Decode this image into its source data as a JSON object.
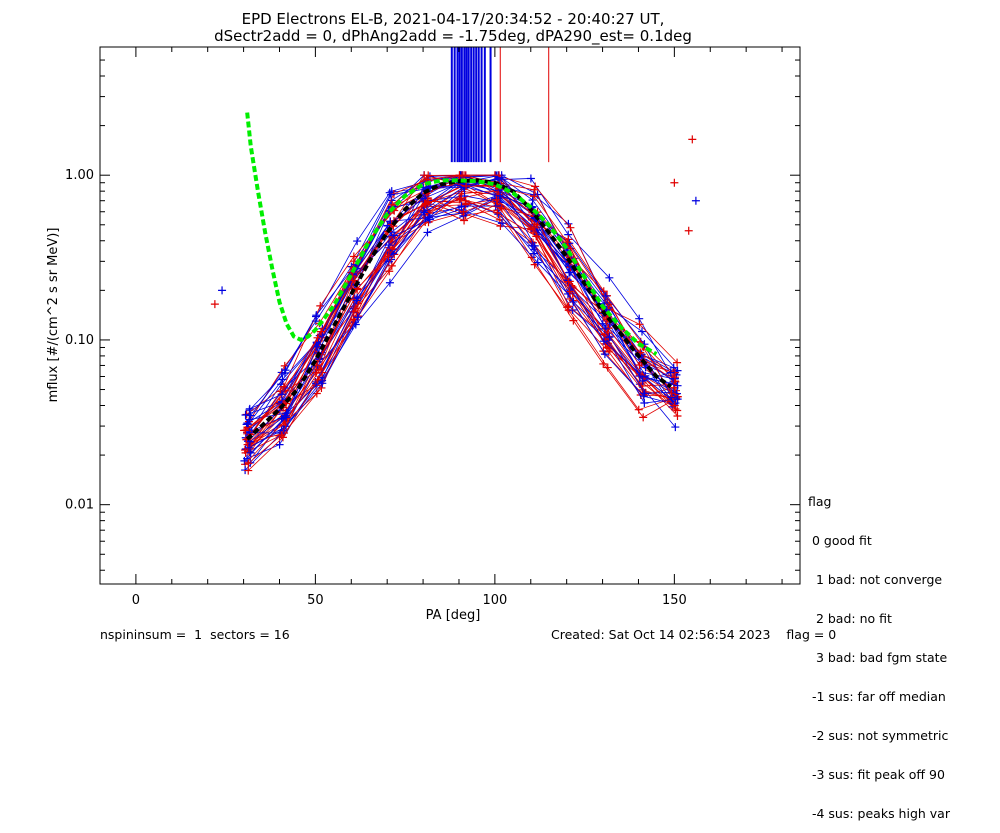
{
  "chart_data": {
    "type": "scatter",
    "title": [
      "EPD Electrons EL-B, 2021-04-17/20:34:52 - 20:40:27 UT,",
      "dSectr2add = 0, dPhAng2add = -1.75deg, dPA290_est=   0.1deg"
    ],
    "xlabel": "PA [deg]",
    "ylabel": "mflux [#/(cm^2 s sr MeV)]",
    "xlim": [
      -10,
      185
    ],
    "ylim": [
      0.0033,
      6.0
    ],
    "yscale": "log",
    "xticks": [
      0,
      50,
      100,
      150
    ],
    "xtick_labels": [
      "0",
      "50",
      "100",
      "150"
    ],
    "yticks": [
      0.01,
      0.1,
      1.0
    ],
    "ytick_labels": [
      "0.01",
      "0.10",
      "1.00"
    ],
    "colors": {
      "red": "#e00000",
      "blue": "#0000e0",
      "green": "#00ee00",
      "black": "#000000"
    },
    "series": [
      {
        "kind": "fit-median",
        "color": "black",
        "style": "dashed",
        "x": [
          31,
          35,
          40,
          45,
          50,
          55,
          60,
          65,
          70,
          75,
          80,
          85,
          90,
          95,
          100,
          105,
          110,
          115,
          120,
          125,
          130,
          135,
          140,
          145,
          149
        ],
        "y": [
          0.025,
          0.03,
          0.038,
          0.05,
          0.075,
          0.12,
          0.19,
          0.3,
          0.45,
          0.62,
          0.78,
          0.88,
          0.92,
          0.93,
          0.9,
          0.8,
          0.62,
          0.45,
          0.32,
          0.22,
          0.15,
          0.11,
          0.08,
          0.06,
          0.052
        ]
      },
      {
        "kind": "fit",
        "color": "green",
        "style": "dashed",
        "x": [
          31,
          32,
          34,
          36,
          38,
          40,
          42,
          44,
          46,
          48,
          50,
          55,
          60,
          65,
          70,
          75,
          80,
          85,
          90,
          95,
          100,
          105,
          110,
          115,
          120,
          125,
          130,
          135,
          140,
          145
        ],
        "y": [
          2.4,
          1.5,
          0.8,
          0.45,
          0.27,
          0.17,
          0.125,
          0.105,
          0.1,
          0.105,
          0.115,
          0.16,
          0.25,
          0.4,
          0.58,
          0.75,
          0.88,
          0.93,
          0.93,
          0.92,
          0.88,
          0.78,
          0.64,
          0.5,
          0.36,
          0.24,
          0.16,
          0.12,
          0.095,
          0.082
        ]
      },
      {
        "kind": "median-pa-marks",
        "color": "blue",
        "x": [
          88,
          88.8,
          89.6,
          90.2,
          90.8,
          91.5,
          92.1,
          92.7,
          93.4,
          94.1,
          94.8,
          95.5,
          96.3,
          97.2,
          98.8
        ],
        "ylow": 1.2,
        "yhigh": 6.0
      },
      {
        "kind": "peak-pa-marks",
        "color": "red",
        "x": [
          101.5,
          115
        ],
        "ylow": 1.2,
        "yhigh": 6.0
      },
      {
        "kind": "outliers",
        "color": "red",
        "x": [
          22,
          150,
          154,
          155
        ],
        "y": [
          0.165,
          0.9,
          0.46,
          1.65
        ]
      },
      {
        "kind": "outliers",
        "color": "blue",
        "x": [
          24,
          156
        ],
        "y": [
          0.2,
          0.7
        ]
      }
    ],
    "spectra_note": "many overlapping per-spin red and blue +/line spectra"
  },
  "legend": {
    "title": "flag",
    "items": [
      " 0 good fit",
      "  1 bad: not converge",
      "  2 bad: no fit",
      "  3 bad: bad fgm state",
      " -1 sus: far off median",
      " -2 sus: not symmetric",
      " -3 sus: fit peak off 90",
      " -4 sus: peaks high var"
    ]
  },
  "footer": {
    "left": "nspininsum =  1  sectors = 16",
    "right": "Created: Sat Oct 14 02:56:54 2023    flag = 0"
  }
}
